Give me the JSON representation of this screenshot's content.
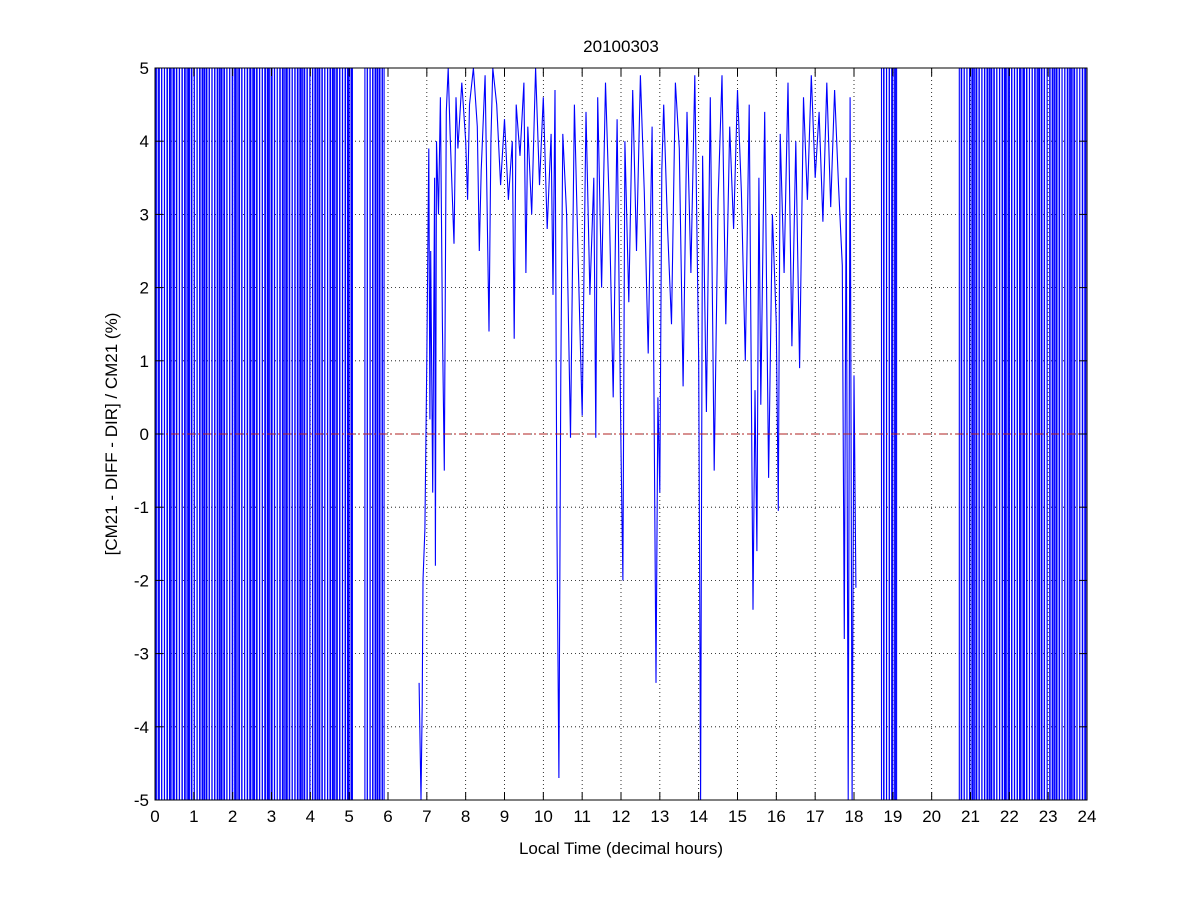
{
  "chart_data": {
    "type": "line",
    "title": "20100303",
    "xlabel": "Local Time (decimal hours)",
    "ylabel": "[CM21 - DIFF - DIR] / CM21 (%)",
    "xlim": [
      0,
      24
    ],
    "ylim": [
      -5,
      5
    ],
    "x_ticks": [
      "0",
      "1",
      "2",
      "3",
      "4",
      "5",
      "6",
      "7",
      "8",
      "9",
      "10",
      "11",
      "12",
      "13",
      "14",
      "15",
      "16",
      "17",
      "18",
      "19",
      "20",
      "21",
      "22",
      "23",
      "24"
    ],
    "y_ticks": [
      "5",
      "4",
      "3",
      "2",
      "1",
      "0",
      "-1",
      "-2",
      "-3",
      "-4",
      "-5"
    ],
    "grid": true,
    "grid_style": "dotted",
    "reference_line": {
      "y": 0,
      "color": "#b22222",
      "style": "dash-dot"
    },
    "colors": {
      "series": "#0000ff",
      "axes": "#000000",
      "grid": "#000000"
    },
    "series": [
      {
        "color": "#0000ff",
        "clipped_ranges": [
          [
            0.0,
            5.1
          ],
          [
            5.4,
            5.9
          ],
          [
            18.7,
            19.1
          ],
          [
            20.7,
            24.0
          ]
        ],
        "points": [
          [
            6.8,
            -3.4
          ],
          [
            6.85,
            -5.0
          ],
          [
            6.88,
            -3.7
          ],
          [
            6.9,
            -2.0
          ],
          [
            6.95,
            -1.3
          ],
          [
            7.0,
            1.0
          ],
          [
            7.05,
            3.9
          ],
          [
            7.08,
            0.2
          ],
          [
            7.1,
            2.5
          ],
          [
            7.15,
            -0.8
          ],
          [
            7.2,
            3.5
          ],
          [
            7.22,
            -1.8
          ],
          [
            7.25,
            4.0
          ],
          [
            7.3,
            3.0
          ],
          [
            7.35,
            4.6
          ],
          [
            7.4,
            1.5
          ],
          [
            7.45,
            -0.5
          ],
          [
            7.5,
            4.4
          ],
          [
            7.55,
            5.0
          ],
          [
            7.6,
            4.1
          ],
          [
            7.7,
            2.6
          ],
          [
            7.75,
            4.6
          ],
          [
            7.8,
            3.9
          ],
          [
            7.9,
            4.8
          ],
          [
            8.0,
            4.0
          ],
          [
            8.05,
            3.2
          ],
          [
            8.1,
            4.5
          ],
          [
            8.2,
            5.0
          ],
          [
            8.3,
            4.2
          ],
          [
            8.35,
            2.5
          ],
          [
            8.4,
            3.6
          ],
          [
            8.5,
            4.9
          ],
          [
            8.6,
            1.4
          ],
          [
            8.65,
            4.0
          ],
          [
            8.7,
            5.0
          ],
          [
            8.8,
            4.5
          ],
          [
            8.9,
            3.4
          ],
          [
            9.0,
            4.3
          ],
          [
            9.1,
            3.2
          ],
          [
            9.2,
            4.0
          ],
          [
            9.25,
            1.3
          ],
          [
            9.3,
            4.5
          ],
          [
            9.4,
            3.8
          ],
          [
            9.5,
            4.8
          ],
          [
            9.55,
            2.2
          ],
          [
            9.6,
            4.2
          ],
          [
            9.7,
            3.0
          ],
          [
            9.8,
            5.0
          ],
          [
            9.9,
            3.4
          ],
          [
            10.0,
            4.6
          ],
          [
            10.1,
            2.8
          ],
          [
            10.2,
            4.1
          ],
          [
            10.25,
            1.9
          ],
          [
            10.3,
            4.7
          ],
          [
            10.35,
            -1.2
          ],
          [
            10.4,
            -4.7
          ],
          [
            10.45,
            0.8
          ],
          [
            10.5,
            4.1
          ],
          [
            10.6,
            3.0
          ],
          [
            10.7,
            -0.05
          ],
          [
            10.8,
            4.5
          ],
          [
            10.9,
            2.3
          ],
          [
            11.0,
            0.25
          ],
          [
            11.1,
            4.4
          ],
          [
            11.2,
            1.9
          ],
          [
            11.3,
            3.5
          ],
          [
            11.35,
            -0.05
          ],
          [
            11.4,
            4.6
          ],
          [
            11.5,
            2.0
          ],
          [
            11.6,
            4.8
          ],
          [
            11.7,
            3.1
          ],
          [
            11.8,
            0.5
          ],
          [
            11.9,
            4.3
          ],
          [
            12.0,
            -0.2
          ],
          [
            12.05,
            -2.0
          ],
          [
            12.1,
            4.0
          ],
          [
            12.2,
            1.8
          ],
          [
            12.3,
            4.7
          ],
          [
            12.4,
            2.5
          ],
          [
            12.5,
            4.9
          ],
          [
            12.6,
            3.3
          ],
          [
            12.7,
            1.1
          ],
          [
            12.8,
            4.2
          ],
          [
            12.9,
            -3.4
          ],
          [
            12.95,
            0.5
          ],
          [
            13.0,
            -0.8
          ],
          [
            13.05,
            3.6
          ],
          [
            13.1,
            4.5
          ],
          [
            13.2,
            2.8
          ],
          [
            13.3,
            1.5
          ],
          [
            13.4,
            4.8
          ],
          [
            13.5,
            3.9
          ],
          [
            13.6,
            0.65
          ],
          [
            13.7,
            4.4
          ],
          [
            13.8,
            2.2
          ],
          [
            13.9,
            4.9
          ],
          [
            14.0,
            1.0
          ],
          [
            14.05,
            -5.0
          ],
          [
            14.1,
            3.8
          ],
          [
            14.2,
            0.3
          ],
          [
            14.3,
            4.6
          ],
          [
            14.4,
            -0.5
          ],
          [
            14.5,
            3.2
          ],
          [
            14.6,
            4.9
          ],
          [
            14.7,
            1.5
          ],
          [
            14.8,
            4.2
          ],
          [
            14.9,
            2.8
          ],
          [
            15.0,
            4.7
          ],
          [
            15.1,
            3.3
          ],
          [
            15.2,
            1.0
          ],
          [
            15.3,
            4.5
          ],
          [
            15.4,
            -2.4
          ],
          [
            15.45,
            0.6
          ],
          [
            15.5,
            -1.6
          ],
          [
            15.55,
            3.5
          ],
          [
            15.6,
            0.4
          ],
          [
            15.7,
            4.4
          ],
          [
            15.8,
            -0.6
          ],
          [
            15.9,
            3.0
          ],
          [
            16.0,
            1.5
          ],
          [
            16.05,
            -1.05
          ],
          [
            16.1,
            4.1
          ],
          [
            16.2,
            2.2
          ],
          [
            16.3,
            4.8
          ],
          [
            16.4,
            1.2
          ],
          [
            16.5,
            4.0
          ],
          [
            16.6,
            0.9
          ],
          [
            16.7,
            4.6
          ],
          [
            16.8,
            3.2
          ],
          [
            16.9,
            4.9
          ],
          [
            17.0,
            3.5
          ],
          [
            17.1,
            4.4
          ],
          [
            17.2,
            2.9
          ],
          [
            17.3,
            4.8
          ],
          [
            17.4,
            3.1
          ],
          [
            17.5,
            4.7
          ],
          [
            17.6,
            3.4
          ],
          [
            17.7,
            2.3
          ],
          [
            17.75,
            -2.8
          ],
          [
            17.8,
            3.5
          ],
          [
            17.85,
            -5.0
          ],
          [
            17.9,
            4.6
          ],
          [
            17.95,
            -5.0
          ],
          [
            18.0,
            0.8
          ],
          [
            18.05,
            -2.1
          ]
        ]
      }
    ]
  }
}
